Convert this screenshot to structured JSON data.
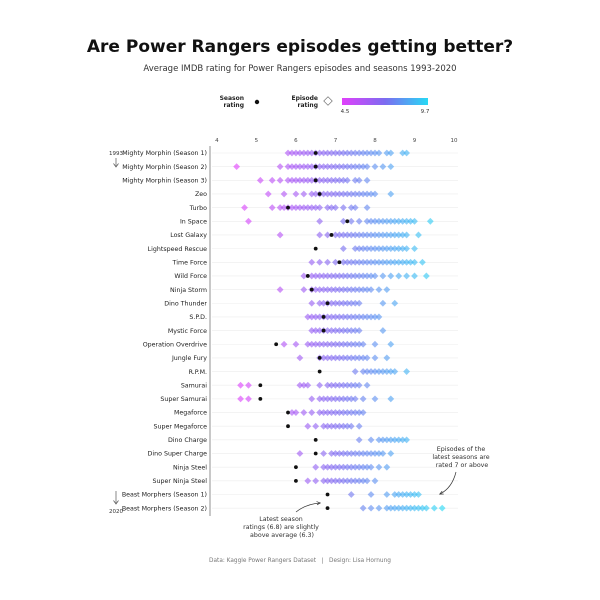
{
  "chart_data": {
    "type": "scatter",
    "title": "Are Power Rangers episodes getting better?",
    "subtitle": "Average IMDB rating for Power Rangers episodes and seasons 1993-2020",
    "legend": {
      "season_label": "Season rating",
      "episode_label": "Episode rating",
      "color_min": "4.5",
      "color_max": "9.7",
      "color_min_value": 4.5,
      "color_max_value": 9.7,
      "color_low": "#e040fb",
      "color_mid": "#7c6cf0",
      "color_high": "#27d9f5",
      "placement": "top-center"
    },
    "x_ticks": [
      "4",
      "5",
      "6",
      "7",
      "8",
      "9",
      "10"
    ],
    "xlim": [
      3.7,
      10.1
    ],
    "year_start": "1993",
    "year_end": "2020",
    "caption": "Data: Kaggle Power Rangers Dataset   |   Design: Lisa Hornung",
    "annotations": {
      "right": [
        "Episodes of the",
        "latest seasons are",
        "rated 7 or above"
      ],
      "bottom": [
        "Latest season",
        "ratings (6.8) are slightly",
        "above average (6.3)"
      ]
    },
    "seasons": [
      {
        "name": "Mighty Morphin (Season 1)",
        "season_rating": 6.5,
        "episodes": [
          5.8,
          5.9,
          6.0,
          6.1,
          6.2,
          6.3,
          6.4,
          6.5,
          6.6,
          6.7,
          6.8,
          6.9,
          7.0,
          7.1,
          7.2,
          7.3,
          7.4,
          7.5,
          7.6,
          7.7,
          7.8,
          7.9,
          8.0,
          8.1,
          8.3,
          8.4,
          8.7,
          8.8
        ]
      },
      {
        "name": "Mighty Morphin (Season 2)",
        "season_rating": 6.5,
        "episodes": [
          4.5,
          5.6,
          5.8,
          5.9,
          6.0,
          6.1,
          6.2,
          6.3,
          6.4,
          6.5,
          6.6,
          6.7,
          6.8,
          6.9,
          7.0,
          7.1,
          7.2,
          7.3,
          7.4,
          7.5,
          7.6,
          7.7,
          7.8,
          8.0,
          8.2,
          8.4
        ]
      },
      {
        "name": "Mighty Morphin (Season 3)",
        "season_rating": 6.5,
        "episodes": [
          5.1,
          5.4,
          5.6,
          5.8,
          5.9,
          6.0,
          6.1,
          6.2,
          6.3,
          6.4,
          6.5,
          6.6,
          6.7,
          6.8,
          6.9,
          7.0,
          7.1,
          7.2,
          7.3,
          7.5,
          7.6,
          7.8
        ]
      },
      {
        "name": "Zeo",
        "season_rating": 6.6,
        "episodes": [
          5.3,
          5.7,
          6.0,
          6.2,
          6.4,
          6.5,
          6.6,
          6.7,
          6.8,
          6.9,
          7.0,
          7.1,
          7.2,
          7.3,
          7.4,
          7.5,
          7.6,
          7.7,
          7.8,
          7.9,
          8.0,
          8.4
        ]
      },
      {
        "name": "Turbo",
        "season_rating": 5.8,
        "episodes": [
          4.7,
          5.4,
          5.6,
          5.7,
          5.8,
          5.9,
          6.0,
          6.1,
          6.2,
          6.3,
          6.4,
          6.5,
          6.6,
          6.8,
          6.9,
          7.0,
          7.2,
          7.4,
          7.5,
          7.8
        ]
      },
      {
        "name": "In Space",
        "season_rating": 7.3,
        "episodes": [
          4.8,
          6.6,
          7.2,
          7.4,
          7.6,
          7.8,
          7.9,
          8.0,
          8.1,
          8.2,
          8.3,
          8.4,
          8.5,
          8.6,
          8.7,
          8.8,
          8.9,
          9.0,
          9.4
        ]
      },
      {
        "name": "Lost Galaxy",
        "season_rating": 6.9,
        "episodes": [
          5.6,
          6.6,
          6.8,
          7.0,
          7.1,
          7.2,
          7.3,
          7.4,
          7.5,
          7.6,
          7.7,
          7.8,
          7.9,
          8.0,
          8.1,
          8.2,
          8.3,
          8.4,
          8.5,
          8.6,
          8.7,
          8.8,
          9.1
        ]
      },
      {
        "name": "Lightspeed Rescue",
        "season_rating": 6.5,
        "episodes": [
          7.2,
          7.5,
          7.6,
          7.7,
          7.8,
          7.9,
          8.0,
          8.1,
          8.2,
          8.3,
          8.4,
          8.5,
          8.6,
          8.7,
          8.8,
          9.0
        ]
      },
      {
        "name": "Time Force",
        "season_rating": 7.1,
        "episodes": [
          6.4,
          6.6,
          6.8,
          7.0,
          7.2,
          7.3,
          7.4,
          7.5,
          7.6,
          7.7,
          7.8,
          7.9,
          8.0,
          8.1,
          8.2,
          8.3,
          8.4,
          8.5,
          8.6,
          8.7,
          8.8,
          8.9,
          9.0,
          9.2
        ]
      },
      {
        "name": "Wild Force",
        "season_rating": 6.3,
        "episodes": [
          6.2,
          6.4,
          6.5,
          6.6,
          6.7,
          6.8,
          6.9,
          7.0,
          7.1,
          7.2,
          7.3,
          7.4,
          7.5,
          7.6,
          7.7,
          7.8,
          7.9,
          8.0,
          8.2,
          8.4,
          8.6,
          8.8,
          9.0,
          9.3
        ]
      },
      {
        "name": "Ninja Storm",
        "season_rating": 6.4,
        "episodes": [
          5.6,
          6.2,
          6.4,
          6.5,
          6.6,
          6.7,
          6.8,
          6.9,
          7.0,
          7.1,
          7.2,
          7.3,
          7.4,
          7.5,
          7.6,
          7.7,
          7.8,
          7.9,
          8.1,
          8.3
        ]
      },
      {
        "name": "Dino Thunder",
        "season_rating": 6.8,
        "episodes": [
          6.4,
          6.6,
          6.7,
          6.8,
          6.9,
          7.0,
          7.1,
          7.2,
          7.3,
          7.4,
          7.5,
          7.6,
          8.2,
          8.5
        ]
      },
      {
        "name": "S.P.D.",
        "season_rating": 6.7,
        "episodes": [
          6.3,
          6.4,
          6.5,
          6.6,
          6.7,
          6.8,
          6.9,
          7.0,
          7.1,
          7.2,
          7.3,
          7.4,
          7.5,
          7.6,
          7.7,
          7.8,
          7.9,
          8.0,
          8.1
        ]
      },
      {
        "name": "Mystic Force",
        "season_rating": 6.7,
        "episodes": [
          6.4,
          6.5,
          6.6,
          6.7,
          6.8,
          6.9,
          7.0,
          7.1,
          7.2,
          7.3,
          7.4,
          7.5,
          7.6,
          8.2
        ]
      },
      {
        "name": "Operation Overdrive",
        "season_rating": 5.5,
        "episodes": [
          5.7,
          6.0,
          6.3,
          6.4,
          6.5,
          6.6,
          6.7,
          6.8,
          6.9,
          7.0,
          7.1,
          7.2,
          7.3,
          7.4,
          7.5,
          7.6,
          7.7,
          8.0,
          8.4
        ]
      },
      {
        "name": "Jungle Fury",
        "season_rating": 6.6,
        "episodes": [
          6.1,
          6.6,
          6.7,
          6.8,
          6.9,
          7.0,
          7.1,
          7.2,
          7.3,
          7.4,
          7.5,
          7.6,
          7.7,
          7.8,
          8.0,
          8.3
        ]
      },
      {
        "name": "R.P.M.",
        "season_rating": 6.6,
        "episodes": [
          7.5,
          7.7,
          7.8,
          7.9,
          8.0,
          8.1,
          8.2,
          8.3,
          8.4,
          8.5,
          8.8
        ]
      },
      {
        "name": "Samurai",
        "season_rating": 5.1,
        "episodes": [
          4.6,
          4.8,
          6.1,
          6.2,
          6.3,
          6.6,
          6.8,
          6.9,
          7.0,
          7.1,
          7.2,
          7.3,
          7.4,
          7.5,
          7.6,
          7.8
        ]
      },
      {
        "name": "Super Samurai",
        "season_rating": 5.1,
        "episodes": [
          4.6,
          4.8,
          6.4,
          6.6,
          6.7,
          6.8,
          6.9,
          7.0,
          7.1,
          7.2,
          7.3,
          7.4,
          7.5,
          7.7,
          8.0,
          8.4
        ]
      },
      {
        "name": "Megaforce",
        "season_rating": 5.8,
        "episodes": [
          5.9,
          6.0,
          6.2,
          6.4,
          6.6,
          6.7,
          6.8,
          6.9,
          7.0,
          7.1,
          7.2,
          7.3,
          7.4,
          7.5,
          7.6,
          7.7
        ]
      },
      {
        "name": "Super Megaforce",
        "season_rating": 5.8,
        "episodes": [
          6.3,
          6.5,
          6.7,
          6.8,
          6.9,
          7.0,
          7.1,
          7.2,
          7.3,
          7.4,
          7.6
        ]
      },
      {
        "name": "Dino Charge",
        "season_rating": 6.5,
        "episodes": [
          7.6,
          7.9,
          8.1,
          8.2,
          8.3,
          8.4,
          8.5,
          8.6,
          8.7,
          8.8
        ]
      },
      {
        "name": "Dino Super Charge",
        "season_rating": 6.5,
        "episodes": [
          6.1,
          6.7,
          6.9,
          7.0,
          7.1,
          7.2,
          7.3,
          7.4,
          7.5,
          7.6,
          7.7,
          7.8,
          7.9,
          8.0,
          8.1,
          8.2,
          8.4
        ]
      },
      {
        "name": "Ninja Steel",
        "season_rating": 6.0,
        "episodes": [
          6.5,
          6.7,
          6.8,
          6.9,
          7.0,
          7.1,
          7.2,
          7.3,
          7.4,
          7.5,
          7.6,
          7.7,
          7.8,
          7.9,
          8.1,
          8.3
        ]
      },
      {
        "name": "Super Ninja Steel",
        "season_rating": 6.0,
        "episodes": [
          6.3,
          6.5,
          6.7,
          6.8,
          6.9,
          7.0,
          7.1,
          7.2,
          7.3,
          7.4,
          7.5,
          7.6,
          7.7,
          7.8,
          8.0
        ]
      },
      {
        "name": "Beast Morphers (Season 1)",
        "season_rating": 6.8,
        "episodes": [
          7.4,
          7.9,
          8.3,
          8.5,
          8.6,
          8.7,
          8.8,
          8.9,
          9.0,
          9.1
        ]
      },
      {
        "name": "Beast Morphers (Season 2)",
        "season_rating": 6.8,
        "episodes": [
          7.7,
          7.9,
          8.1,
          8.3,
          8.4,
          8.5,
          8.6,
          8.7,
          8.8,
          8.9,
          9.0,
          9.1,
          9.2,
          9.3,
          9.5,
          9.7
        ]
      }
    ]
  }
}
